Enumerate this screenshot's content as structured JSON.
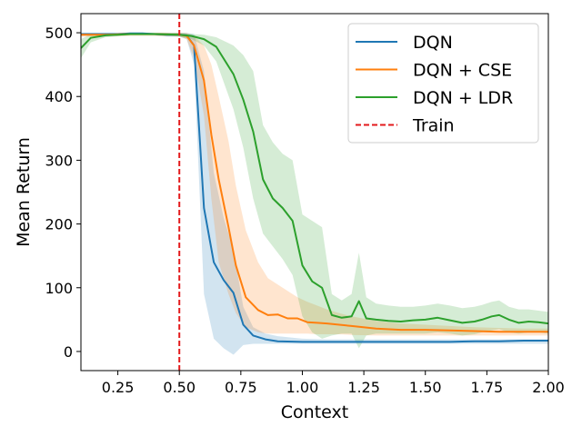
{
  "chart_data": {
    "type": "line",
    "xlabel": "Context",
    "ylabel": "Mean Return",
    "xlim": [
      0.1,
      2.0
    ],
    "ylim": [
      -30,
      530
    ],
    "xticks": [
      0.25,
      0.5,
      0.75,
      1.0,
      1.25,
      1.5,
      1.75,
      2.0
    ],
    "xtick_labels": [
      "0.25",
      "0.50",
      "0.75",
      "1.00",
      "1.25",
      "1.50",
      "1.75",
      "2.00"
    ],
    "yticks": [
      0,
      100,
      200,
      300,
      400,
      500
    ],
    "ytick_labels": [
      "0",
      "100",
      "200",
      "300",
      "400",
      "500"
    ],
    "legend_position": "top-right",
    "train_line": {
      "name": "Train",
      "x": 0.5,
      "color": "#e31a1c"
    },
    "series": [
      {
        "name": "DQN",
        "color": "#1f77b4",
        "x": [
          0.1,
          0.15,
          0.2,
          0.25,
          0.3,
          0.35,
          0.4,
          0.45,
          0.5,
          0.53,
          0.56,
          0.6,
          0.64,
          0.68,
          0.72,
          0.76,
          0.8,
          0.85,
          0.9,
          1.0,
          1.1,
          1.2,
          1.3,
          1.4,
          1.5,
          1.6,
          1.7,
          1.8,
          1.9,
          2.0
        ],
        "values": [
          498,
          498,
          498,
          498,
          499,
          499,
          498,
          497,
          497,
          496,
          480,
          225,
          140,
          112,
          92,
          42,
          25,
          19,
          16,
          15,
          15,
          15,
          15,
          15,
          15,
          15,
          16,
          16,
          17,
          17
        ],
        "upper": [
          500,
          500,
          500,
          500,
          500,
          500,
          500,
          500,
          500,
          500,
          498,
          440,
          280,
          210,
          160,
          70,
          38,
          28,
          24,
          20,
          19,
          19,
          19,
          19,
          19,
          19,
          19,
          19,
          19,
          19
        ],
        "lower": [
          496,
          496,
          496,
          496,
          497,
          497,
          496,
          494,
          494,
          490,
          450,
          90,
          20,
          5,
          -5,
          10,
          12,
          12,
          12,
          12,
          12,
          12,
          12,
          12,
          12,
          12,
          12,
          12,
          12,
          12
        ]
      },
      {
        "name": "DQN + CSE",
        "color": "#ff7f0e",
        "x": [
          0.1,
          0.2,
          0.3,
          0.4,
          0.5,
          0.53,
          0.56,
          0.6,
          0.63,
          0.66,
          0.7,
          0.73,
          0.77,
          0.82,
          0.86,
          0.9,
          0.94,
          0.98,
          1.02,
          1.06,
          1.1,
          1.15,
          1.2,
          1.3,
          1.4,
          1.5,
          1.6,
          1.7,
          1.8,
          1.9,
          2.0
        ],
        "values": [
          497,
          497,
          498,
          498,
          497,
          495,
          480,
          425,
          340,
          270,
          195,
          135,
          85,
          65,
          57,
          58,
          52,
          52,
          46,
          45,
          44,
          42,
          40,
          36,
          34,
          34,
          33,
          32,
          31,
          31,
          31
        ],
        "upper": [
          499,
          499,
          500,
          500,
          500,
          500,
          495,
          480,
          450,
          400,
          330,
          260,
          190,
          140,
          115,
          105,
          95,
          85,
          78,
          72,
          66,
          60,
          55,
          48,
          44,
          42,
          40,
          38,
          37,
          36,
          36
        ],
        "lower": [
          494,
          494,
          495,
          495,
          494,
          490,
          460,
          370,
          240,
          140,
          90,
          60,
          38,
          30,
          28,
          28,
          28,
          28,
          28,
          27,
          27,
          27,
          26,
          25,
          25,
          25,
          25,
          25,
          25,
          25,
          25
        ]
      },
      {
        "name": "DQN + LDR",
        "color": "#2ca02c",
        "x": [
          0.1,
          0.14,
          0.2,
          0.3,
          0.4,
          0.5,
          0.55,
          0.6,
          0.65,
          0.72,
          0.76,
          0.8,
          0.84,
          0.88,
          0.92,
          0.96,
          1.0,
          1.04,
          1.08,
          1.12,
          1.16,
          1.2,
          1.23,
          1.26,
          1.3,
          1.35,
          1.4,
          1.45,
          1.5,
          1.55,
          1.6,
          1.65,
          1.7,
          1.73,
          1.77,
          1.8,
          1.84,
          1.88,
          1.92,
          1.96,
          2.0
        ],
        "values": [
          476,
          492,
          496,
          498,
          498,
          497,
          495,
          490,
          478,
          435,
          395,
          345,
          270,
          240,
          225,
          205,
          135,
          110,
          100,
          57,
          53,
          55,
          79,
          52,
          50,
          48,
          47,
          49,
          50,
          53,
          49,
          45,
          47,
          50,
          55,
          57,
          50,
          45,
          47,
          46,
          44
        ],
        "upper": [
          490,
          498,
          499,
          500,
          500,
          500,
          498,
          497,
          493,
          480,
          465,
          440,
          355,
          328,
          310,
          300,
          215,
          205,
          195,
          90,
          80,
          90,
          155,
          85,
          75,
          72,
          70,
          70,
          72,
          75,
          72,
          68,
          70,
          73,
          78,
          80,
          70,
          66,
          66,
          64,
          62
        ],
        "lower": [
          460,
          485,
          493,
          496,
          496,
          494,
          490,
          480,
          455,
          380,
          320,
          240,
          185,
          165,
          145,
          120,
          55,
          30,
          20,
          25,
          28,
          28,
          5,
          25,
          28,
          28,
          28,
          28,
          28,
          30,
          28,
          25,
          27,
          30,
          33,
          35,
          30,
          28,
          30,
          30,
          28
        ]
      }
    ]
  }
}
